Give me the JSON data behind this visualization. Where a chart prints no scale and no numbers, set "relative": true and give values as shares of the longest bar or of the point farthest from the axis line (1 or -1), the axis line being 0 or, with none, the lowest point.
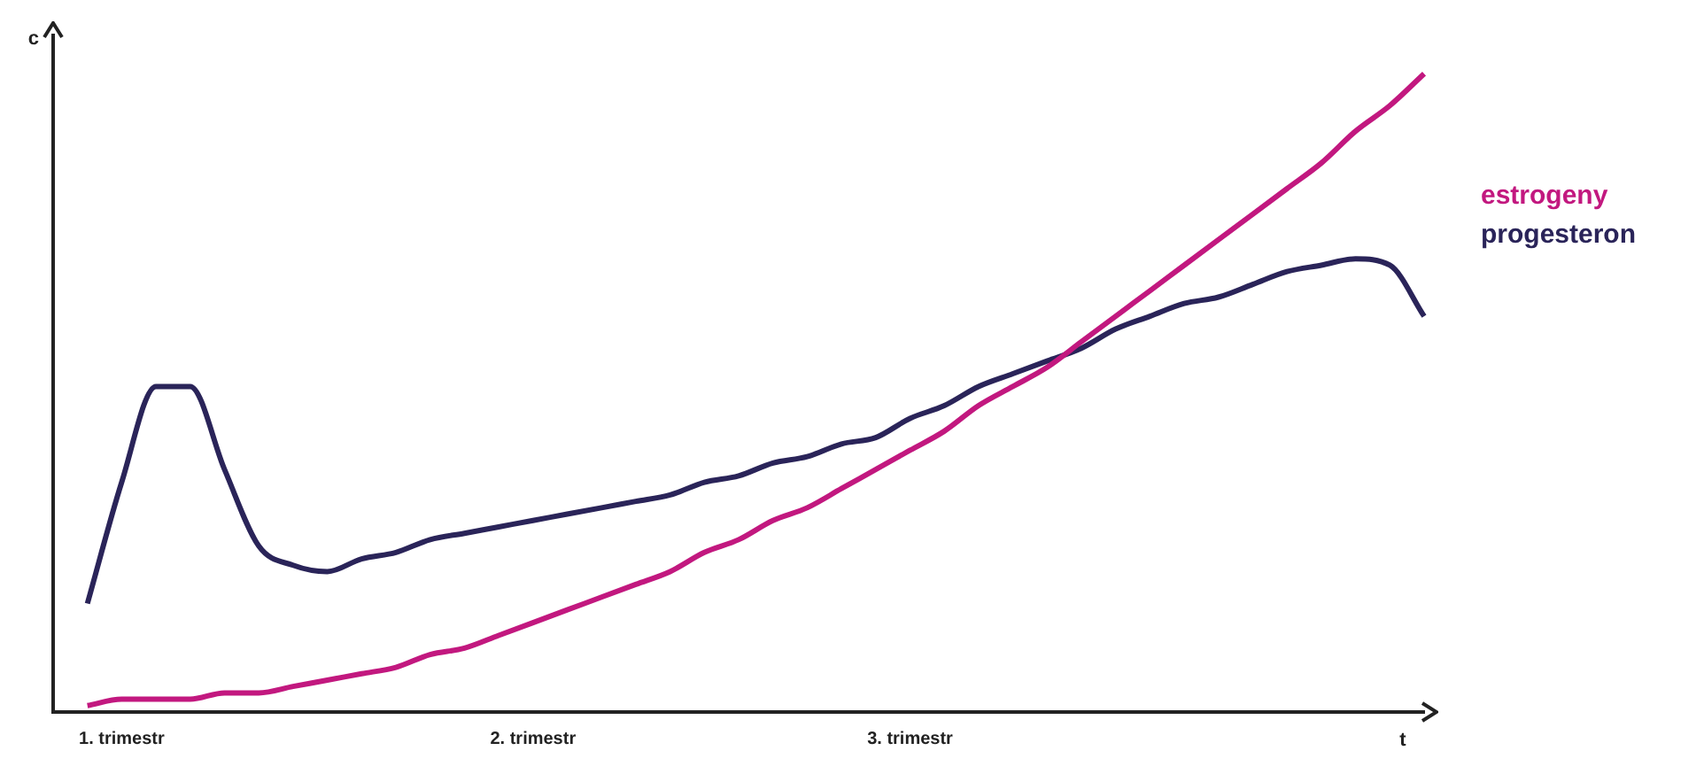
{
  "chart_data": {
    "type": "line",
    "relative": true,
    "xlabel": "t",
    "ylabel": "c",
    "legend": "right",
    "marker": "none",
    "grid": false,
    "categories": [
      null,
      null,
      "1. trimestr",
      null,
      null,
      null,
      null,
      null,
      null,
      null,
      null,
      null,
      null,
      null,
      "2. trimestr",
      null,
      null,
      null,
      null,
      null,
      null,
      null,
      null,
      null,
      null,
      "3. trimestr",
      null,
      null,
      null,
      null,
      null,
      null,
      null,
      null,
      null,
      null,
      null,
      null,
      null,
      null,
      null
    ],
    "series": [
      {
        "name": "estrogeny",
        "color": "#c2187f",
        "values": [
          null,
          0.01,
          0.02,
          0.02,
          0.02,
          0.03,
          0.03,
          0.04,
          0.05,
          0.06,
          0.07,
          0.09,
          0.1,
          0.12,
          0.14,
          0.16,
          0.18,
          0.2,
          0.22,
          0.25,
          0.27,
          0.3,
          0.32,
          0.35,
          0.38,
          0.41,
          0.44,
          0.48,
          0.51,
          0.54,
          0.58,
          0.62,
          0.66,
          0.7,
          0.74,
          0.78,
          0.82,
          0.86,
          0.91,
          0.95,
          1.0
        ]
      },
      {
        "name": "progesteron",
        "color": "#2a2459",
        "values": [
          null,
          0.17,
          0.36,
          0.51,
          0.51,
          0.38,
          0.26,
          0.23,
          0.22,
          0.24,
          0.25,
          0.27,
          0.28,
          0.29,
          0.3,
          0.31,
          0.32,
          0.33,
          0.34,
          0.36,
          0.37,
          0.39,
          0.4,
          0.42,
          0.43,
          0.46,
          0.48,
          0.51,
          0.53,
          0.55,
          0.57,
          0.6,
          0.62,
          0.64,
          0.65,
          0.67,
          0.69,
          0.7,
          0.71,
          0.7,
          0.62
        ]
      }
    ]
  }
}
